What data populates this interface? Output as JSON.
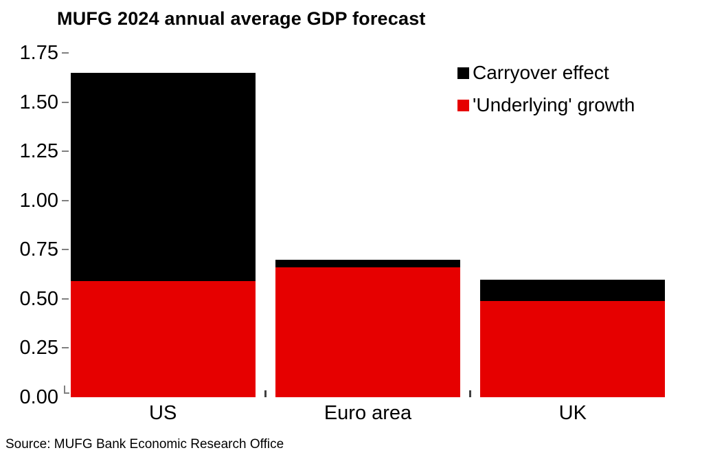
{
  "title": "MUFG 2024 annual average GDP forecast",
  "source": "Source: MUFG Bank Economic Research Office",
  "colors": {
    "carryover": "#000000",
    "underlying": "#e60000",
    "tick": "#7f7f7f"
  },
  "legend": {
    "items": [
      {
        "label": "Carryover effect",
        "color": "#000000"
      },
      {
        "label": "'Underlying' growth",
        "color": "#e60000"
      }
    ]
  },
  "chart_data": {
    "type": "bar",
    "stacked": true,
    "title": "MUFG 2024 annual average GDP forecast",
    "categories": [
      "US",
      "Euro area",
      "UK"
    ],
    "series": [
      {
        "name": "'Underlying' growth",
        "color": "#e60000",
        "values": [
          0.59,
          0.66,
          0.49
        ]
      },
      {
        "name": "Carryover effect",
        "color": "#000000",
        "values": [
          1.06,
          0.04,
          0.11
        ]
      }
    ],
    "totals": [
      1.65,
      0.7,
      0.6
    ],
    "xlabel": "",
    "ylabel": "",
    "ylim": [
      0,
      1.75
    ],
    "ytick_step": 0.25,
    "ytick_labels": [
      "0.00",
      "0.25",
      "0.50",
      "0.75",
      "1.00",
      "1.25",
      "1.50",
      "1.75"
    ],
    "grid": false,
    "legend_position": "top-right",
    "source": "Source: MUFG Bank Economic Research Office"
  }
}
